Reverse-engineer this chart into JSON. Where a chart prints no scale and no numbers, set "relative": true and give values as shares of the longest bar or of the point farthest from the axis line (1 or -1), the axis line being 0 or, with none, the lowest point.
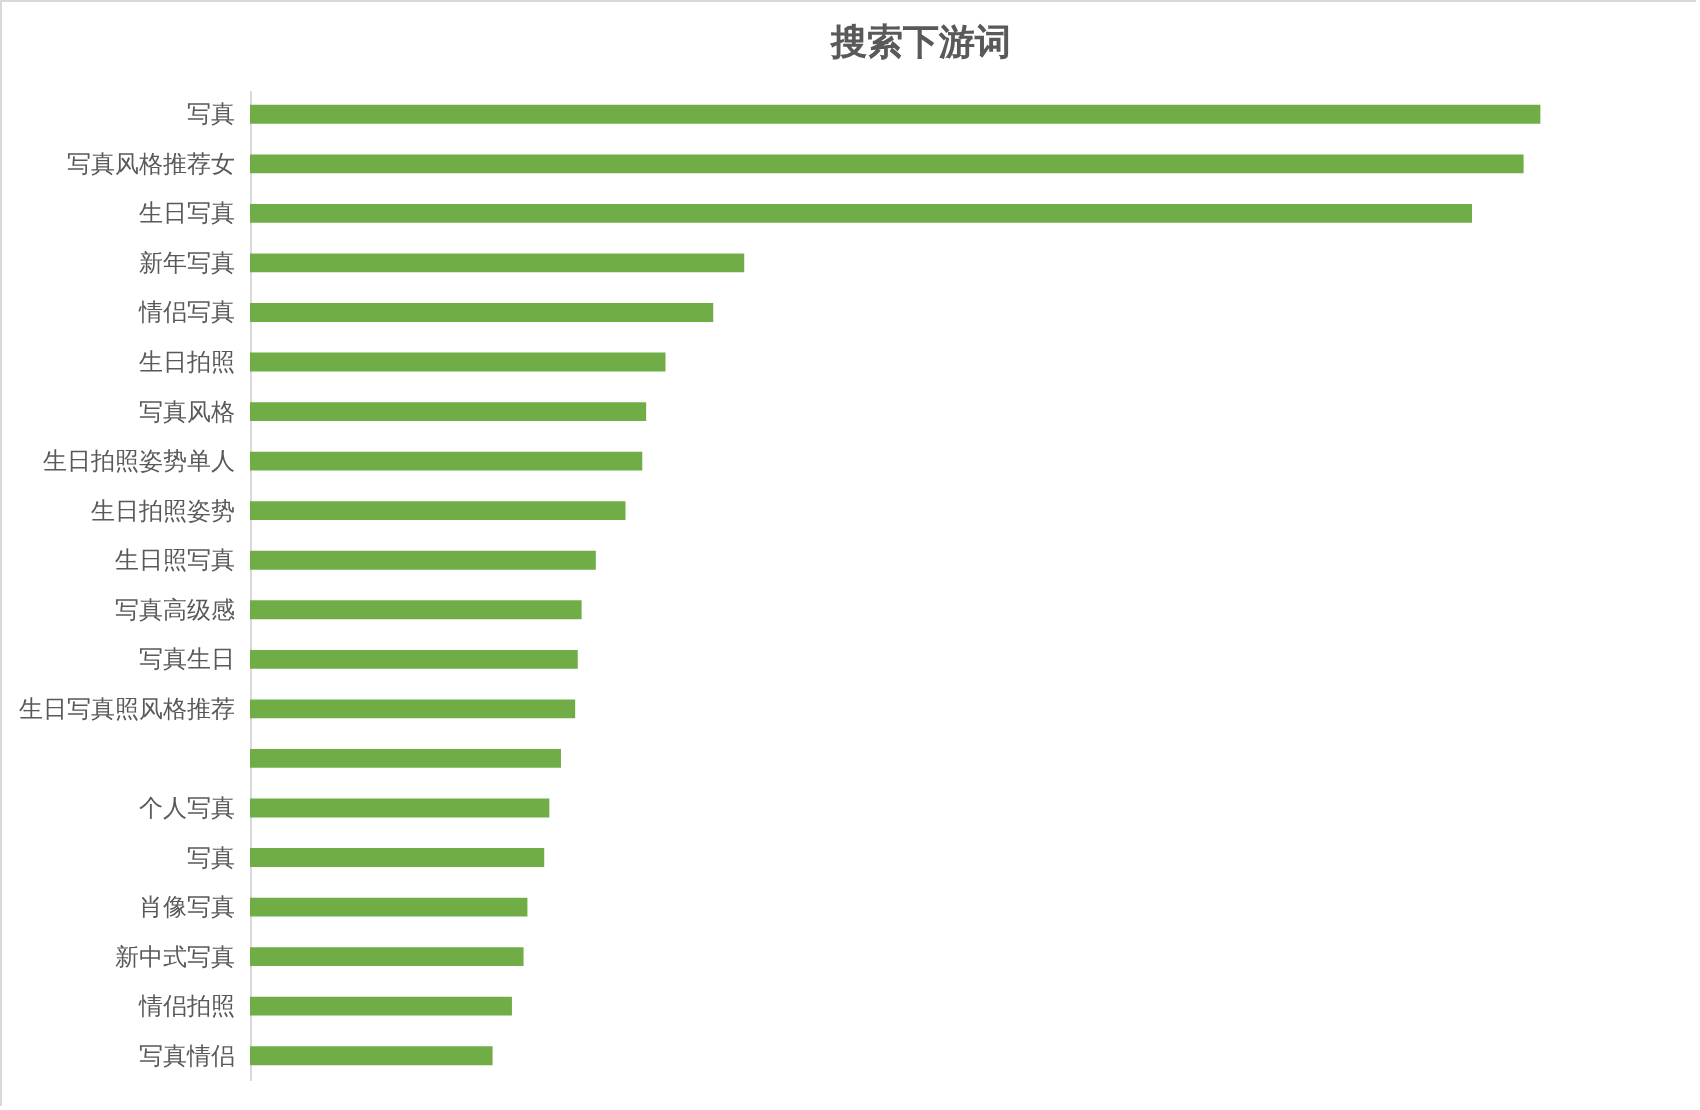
{
  "chart_data": {
    "type": "bar",
    "orientation": "horizontal",
    "relative": true,
    "title": "搜索下游词",
    "categories": [
      "写真",
      "写真风格推荐女",
      "生日写真",
      "新年写真",
      "情侣写真",
      "生日拍照",
      "写真风格",
      "生日拍照姿势单人",
      "生日拍照姿势",
      "生日照写真",
      "写真高级感",
      "写真生日",
      "生日写真照风格推荐",
      null,
      "个人写真",
      "写真",
      "肖像写真",
      "新中式写真",
      "情侣拍照",
      "写真情侣"
    ],
    "values": [
      1,
      0.987,
      0.947,
      0.383,
      0.359,
      0.322,
      0.307,
      0.304,
      0.291,
      0.268,
      0.257,
      0.254,
      0.252,
      0.241,
      0.232,
      0.228,
      0.215,
      0.212,
      0.203,
      0.188
    ],
    "color": "#70ad47"
  }
}
